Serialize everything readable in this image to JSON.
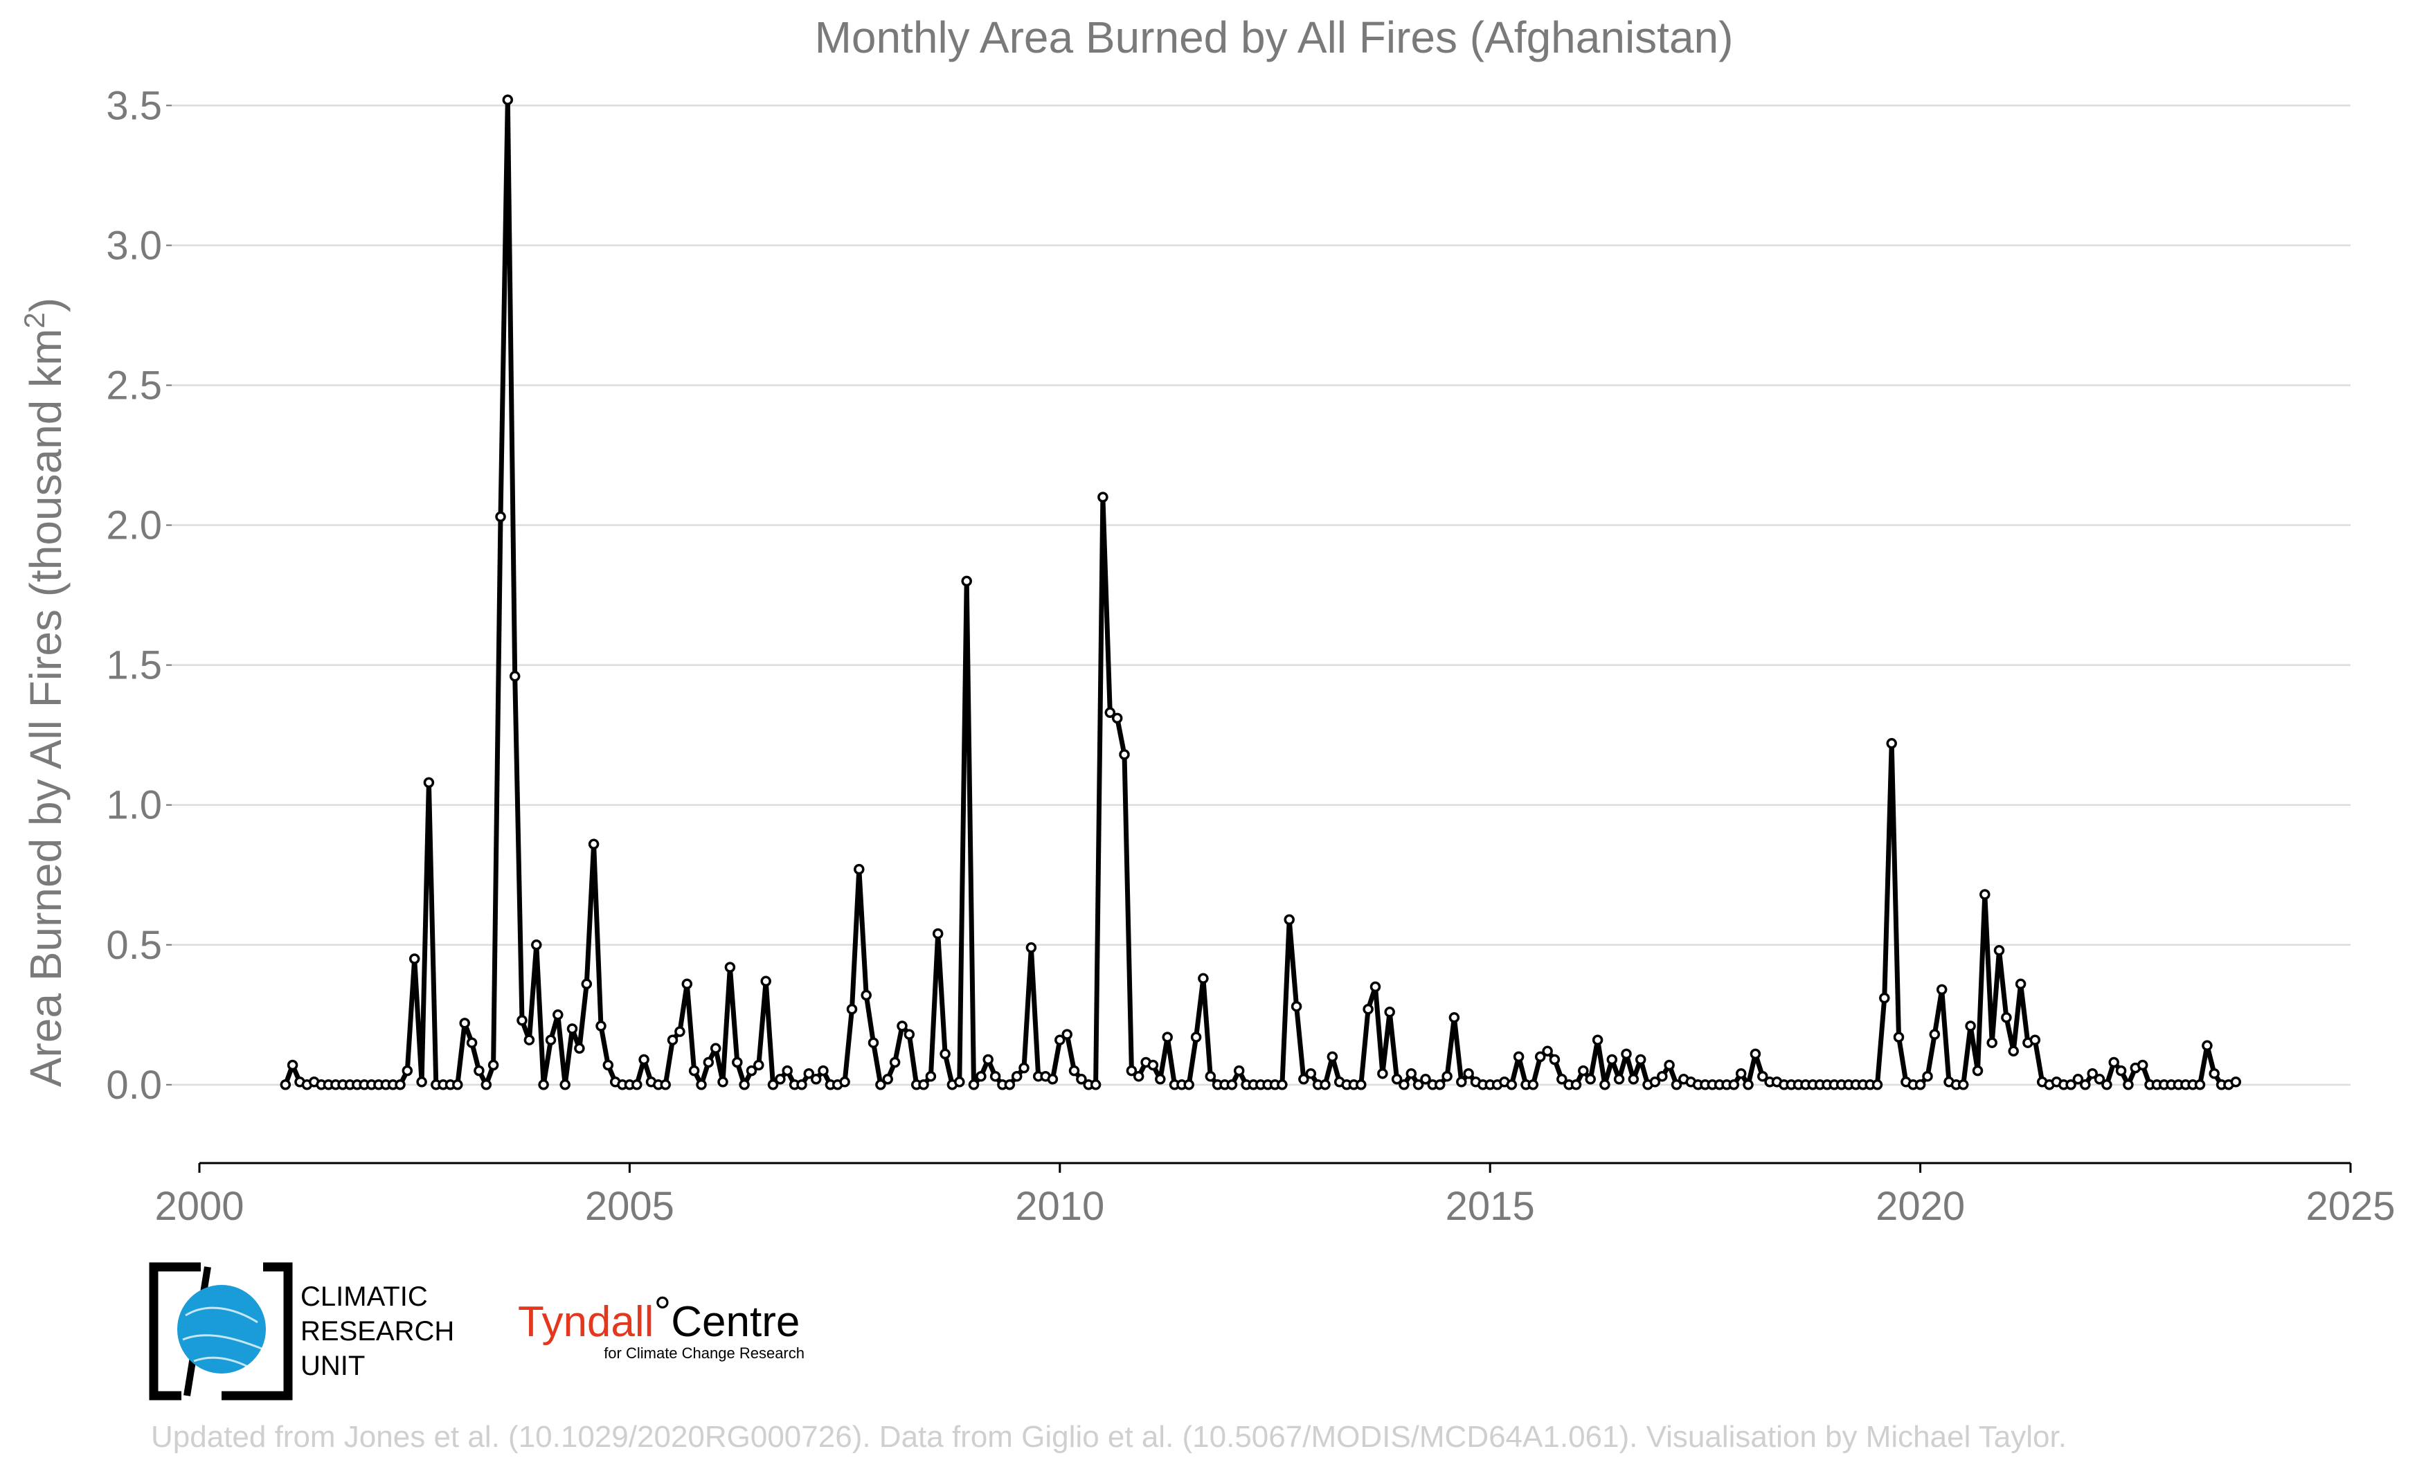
{
  "chart_data": {
    "type": "line",
    "title": "Monthly Area Burned by All Fires (Afghanistan)",
    "ylabel_main": "Area Burned by All Fires (thousand km",
    "ylabel_sup": "2",
    "ylabel_end": ")",
    "xlabel": "",
    "xlim": [
      2000,
      2025
    ],
    "ylim": [
      -0.28,
      3.58
    ],
    "xticks": [
      2000,
      2005,
      2010,
      2015,
      2020,
      2025
    ],
    "xtick_labels": [
      "2000",
      "2005",
      "2010",
      "2015",
      "2020",
      "2025"
    ],
    "yticks": [
      0,
      0.5,
      1.0,
      1.5,
      2.0,
      2.5,
      3.0,
      3.5
    ],
    "ytick_labels": [
      "0.0",
      "0.5",
      "1.0",
      "1.5",
      "2.0",
      "2.5",
      "3.0",
      "3.5"
    ],
    "grid": "horizontal",
    "line_color": "#000000",
    "start": [
      2001,
      1
    ],
    "series": [
      {
        "values": [
          0.0,
          0.07,
          0.01,
          0.0,
          0.01,
          0.0,
          0.0,
          0.0,
          0.0,
          0.0,
          0.0,
          0.0,
          0.0,
          0.0,
          0.0,
          0.0,
          0.0,
          0.05,
          0.45,
          0.01,
          1.08,
          0.0,
          0.0,
          0.0,
          0.0,
          0.22,
          0.15,
          0.05,
          0.0,
          0.07,
          2.03,
          3.52,
          1.46,
          0.23,
          0.16,
          0.5,
          0.0,
          0.16,
          0.25,
          0.0,
          0.2,
          0.13,
          0.36,
          0.86,
          0.21,
          0.07,
          0.01,
          0.0,
          0.0,
          0.0,
          0.09,
          0.01,
          0.0,
          0.0,
          0.16,
          0.19,
          0.36,
          0.05,
          0.0,
          0.08,
          0.13,
          0.01,
          0.42,
          0.08,
          0.0,
          0.05,
          0.07,
          0.37,
          0.0,
          0.02,
          0.05,
          0.0,
          0.0,
          0.04,
          0.02,
          0.05,
          0.0,
          0.0,
          0.01,
          0.27,
          0.77,
          0.32,
          0.15,
          0.0,
          0.02,
          0.08,
          0.21,
          0.18,
          0.0,
          0.0,
          0.03,
          0.54,
          0.11,
          0.0,
          0.01,
          1.8,
          0.0,
          0.03,
          0.09,
          0.03,
          0.0,
          0.0,
          0.03,
          0.06,
          0.49,
          0.03,
          0.03,
          0.02,
          0.16,
          0.18,
          0.05,
          0.02,
          0.0,
          0.0,
          2.1,
          1.33,
          1.31,
          1.18,
          0.05,
          0.03,
          0.08,
          0.07,
          0.02,
          0.17,
          0.0,
          0.0,
          0.0,
          0.17,
          0.38,
          0.03,
          0.0,
          0.0,
          0.0,
          0.05,
          0.0,
          0.0,
          0.0,
          0.0,
          0.0,
          0.0,
          0.59,
          0.28,
          0.02,
          0.04,
          0.0,
          0.0,
          0.1,
          0.01,
          0.0,
          0.0,
          0.0,
          0.27,
          0.35,
          0.04,
          0.26,
          0.02,
          0.0,
          0.04,
          0.0,
          0.02,
          0.0,
          0.0,
          0.03,
          0.24,
          0.01,
          0.04,
          0.01,
          0.0,
          0.0,
          0.0,
          0.01,
          0.0,
          0.1,
          0.0,
          0.0,
          0.1,
          0.12,
          0.09,
          0.02,
          0.0,
          0.0,
          0.05,
          0.02,
          0.16,
          0.0,
          0.09,
          0.02,
          0.11,
          0.02,
          0.09,
          0.0,
          0.01,
          0.03,
          0.07,
          0.0,
          0.02,
          0.01,
          0.0,
          0.0,
          0.0,
          0.0,
          0.0,
          0.0,
          0.04,
          0.0,
          0.11,
          0.03,
          0.01,
          0.01,
          0.0,
          0.0,
          0.0,
          0.0,
          0.0,
          0.0,
          0.0,
          0.0,
          0.0,
          0.0,
          0.0,
          0.0,
          0.0,
          0.0,
          0.31,
          1.22,
          0.17,
          0.01,
          0.0,
          0.0,
          0.03,
          0.18,
          0.34,
          0.01,
          0.0,
          0.0,
          0.21,
          0.05,
          0.68,
          0.15,
          0.48,
          0.24,
          0.12,
          0.36,
          0.15,
          0.16,
          0.01,
          0.0,
          0.01,
          0.0,
          0.0,
          0.02,
          0.0,
          0.04,
          0.02,
          0.0,
          0.08,
          0.05,
          0.0,
          0.06,
          0.07,
          0.0,
          0.0,
          0.0,
          0.0,
          0.0,
          0.0,
          0.0,
          0.0,
          0.14,
          0.04,
          0.0,
          0.0,
          0.01
        ]
      }
    ]
  },
  "logos": {
    "cru_line1": "CLIMATIC",
    "cru_line2": "RESEARCH",
    "cru_line3": "UNIT",
    "tyndall_name": "Tyndall",
    "tyndall_degree": "°",
    "tyndall_centre": "Centre",
    "tyndall_sub": "for Climate Change Research",
    "cru_color": "#1a9cd8",
    "tyndall_color": "#e4371e"
  },
  "footer": {
    "credit": "Updated from Jones et al. (10.1029/2020RG000726). Data from Giglio et al. (10.5067/MODIS/MCD64A1.061). Visualisation by Michael Taylor."
  }
}
